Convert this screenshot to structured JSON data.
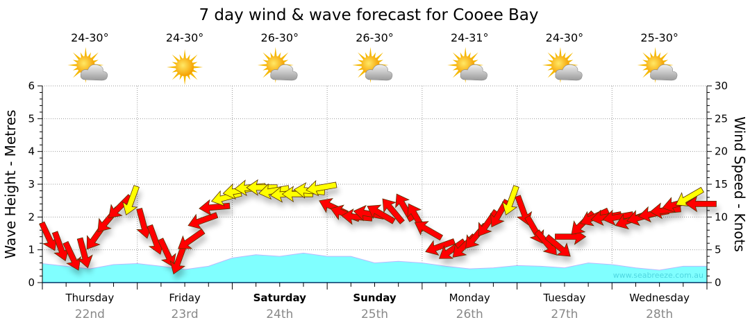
{
  "chart_data": {
    "type": "line",
    "title": "7 day wind & wave forecast for Cooee Bay",
    "ylabel_left": "Wave Height - Metres",
    "ylabel_right": "Wind Speed - Knots",
    "ylim_left": [
      0,
      6
    ],
    "ylim_right": [
      0,
      30
    ],
    "yticks_left": [
      "0",
      "1",
      "2",
      "3",
      "4",
      "5",
      "6"
    ],
    "yticks_right": [
      "0",
      "5",
      "10",
      "15",
      "20",
      "25",
      "30"
    ],
    "grid": true,
    "watermark": "www.seabreeze.com.au",
    "days": [
      {
        "name": "Thursday",
        "date": "22nd",
        "bold": false,
        "temp": "24-30°",
        "icon": "partly-cloudy"
      },
      {
        "name": "Friday",
        "date": "23rd",
        "bold": false,
        "temp": "24-30°",
        "icon": "sunny"
      },
      {
        "name": "Saturday",
        "date": "24th",
        "bold": true,
        "temp": "26-30°",
        "icon": "partly-cloudy"
      },
      {
        "name": "Sunday",
        "date": "25th",
        "bold": true,
        "temp": "26-30°",
        "icon": "partly-cloudy"
      },
      {
        "name": "Monday",
        "date": "26th",
        "bold": false,
        "temp": "24-31°",
        "icon": "partly-cloudy"
      },
      {
        "name": "Tuesday",
        "date": "27th",
        "bold": false,
        "temp": "24-30°",
        "icon": "partly-cloudy"
      },
      {
        "name": "Wednesday",
        "date": "28th",
        "bold": false,
        "temp": "25-30°",
        "icon": "partly-cloudy"
      }
    ],
    "wave_series": {
      "name": "Wave height (m)",
      "color": "#80ffff",
      "points_per_day": 4,
      "values": [
        0.58,
        0.5,
        0.42,
        0.55,
        0.58,
        0.5,
        0.4,
        0.5,
        0.75,
        0.85,
        0.8,
        0.9,
        0.8,
        0.8,
        0.6,
        0.65,
        0.6,
        0.5,
        0.42,
        0.45,
        0.52,
        0.5,
        0.45,
        0.6,
        0.55,
        0.45,
        0.38,
        0.5,
        0.5
      ]
    },
    "wind_series": {
      "name": "Wind speed (knots)",
      "points_per_day": 8,
      "strong_color": "#ffff00",
      "normal_color": "#ff0000",
      "strong_threshold": 12.5,
      "speed": [
        7,
        5.5,
        4,
        4.5,
        7,
        9.5,
        11.5,
        12.5,
        9,
        6.5,
        4.5,
        3.5,
        6.5,
        9.5,
        11.5,
        13,
        14,
        14.5,
        14.5,
        14,
        13.5,
        13.5,
        14,
        14.5,
        11.5,
        10.5,
        10,
        10.5,
        10.5,
        11,
        11.5,
        10,
        8,
        5.5,
        5,
        5.5,
        7,
        9,
        10.5,
        12.5,
        11,
        8,
        6,
        5.5,
        7,
        9,
        10,
        10,
        10,
        9.5,
        10,
        10.5,
        11,
        12,
        13,
        12
      ],
      "direction_deg": [
        155,
        160,
        155,
        165,
        215,
        220,
        225,
        200,
        165,
        160,
        155,
        200,
        235,
        250,
        265,
        255,
        260,
        265,
        270,
        260,
        265,
        270,
        275,
        260,
        295,
        290,
        275,
        280,
        300,
        320,
        330,
        330,
        300,
        250,
        235,
        225,
        220,
        215,
        210,
        200,
        160,
        150,
        140,
        130,
        90,
        225,
        245,
        260,
        260,
        250,
        255,
        260,
        265,
        255,
        240,
        270
      ]
    }
  }
}
